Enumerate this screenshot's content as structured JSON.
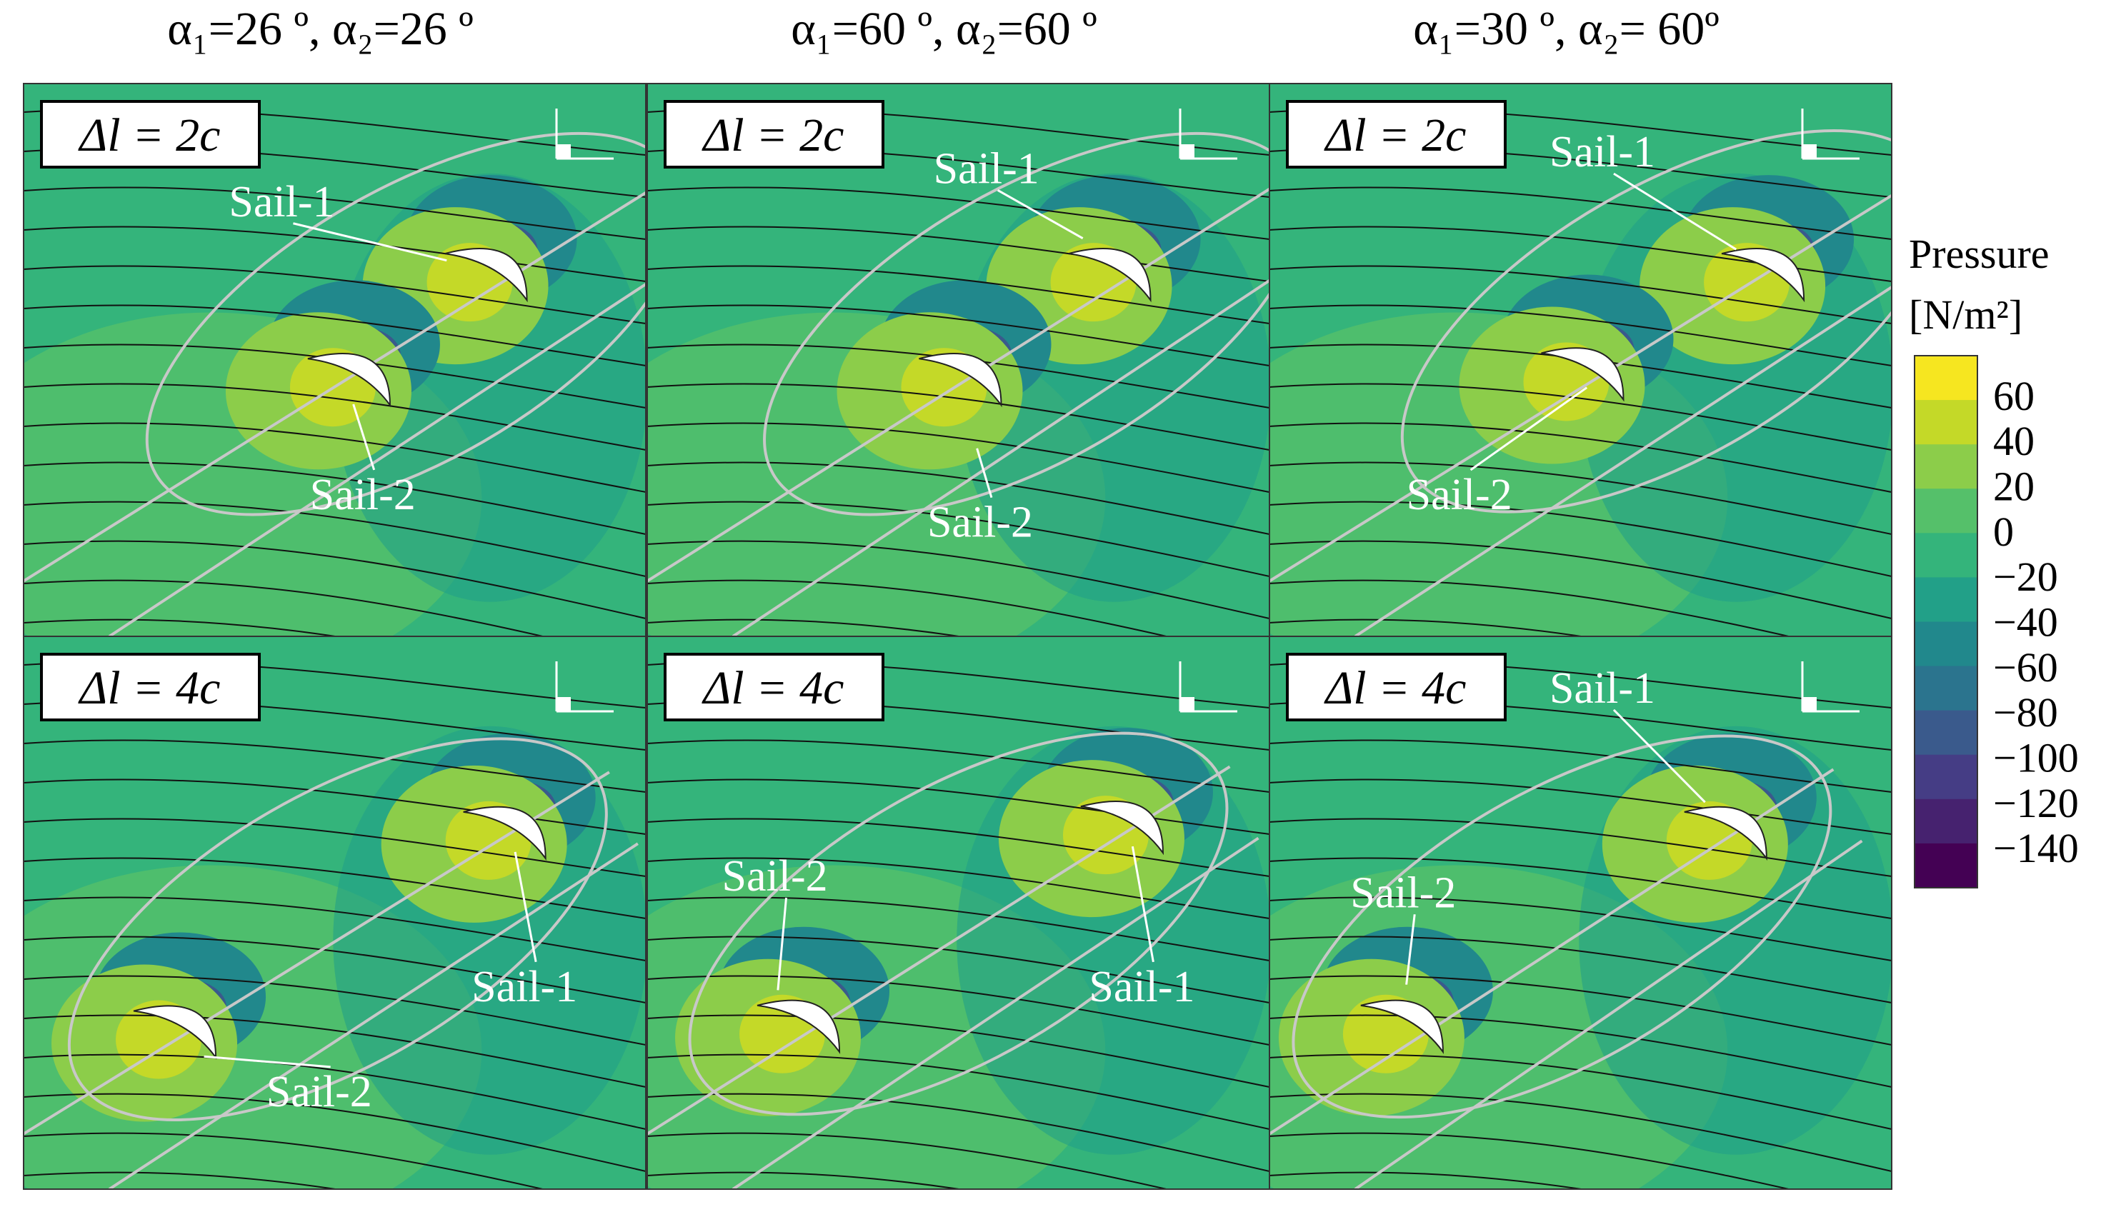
{
  "columns": [
    "α₁=26 º, α₂=26 º",
    "α₁=60 º, α₂=60 º",
    "α₁=30 º, α₂= 60º"
  ],
  "rows": [
    "Δl = 2c",
    "Δl = 4c"
  ],
  "sail_labels": [
    "Sail-1",
    "Sail-2"
  ],
  "colorbar": {
    "title": "Pressure",
    "unit": "[N/m²]",
    "ticks": [
      {
        "value": 60,
        "label": "60"
      },
      {
        "value": 40,
        "label": "40"
      },
      {
        "value": 20,
        "label": "20"
      },
      {
        "value": 0,
        "label": "0"
      },
      {
        "value": -20,
        "label": "−20"
      },
      {
        "value": -40,
        "label": "−40"
      },
      {
        "value": -60,
        "label": "−60"
      },
      {
        "value": -80,
        "label": "−80"
      },
      {
        "value": -100,
        "label": "−100"
      },
      {
        "value": -120,
        "label": "−120"
      },
      {
        "value": -140,
        "label": "−140"
      }
    ],
    "colors": [
      "#f6e620",
      "#c4d928",
      "#8ccd4a",
      "#55c06a",
      "#34b47b",
      "#22a088",
      "#21888c",
      "#2b748e",
      "#3a5a8c",
      "#453d85",
      "#46226f",
      "#440154"
    ]
  }
}
